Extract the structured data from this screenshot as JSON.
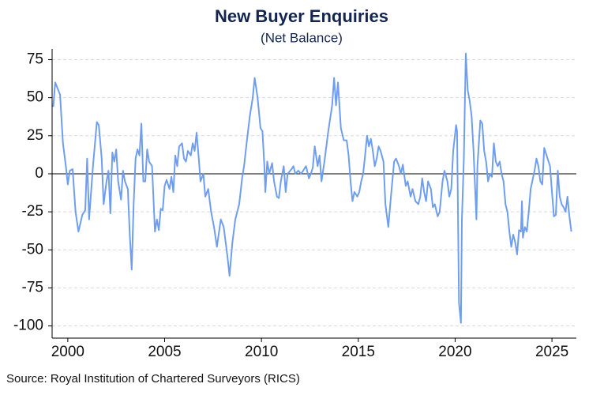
{
  "chart_data": {
    "type": "line",
    "title": "New Buyer Enquiries",
    "subtitle": "(Net Balance)",
    "source": "Source: Royal Institution of Chartered Surveyors (RICS)",
    "color": "#6f9ef0",
    "grid": true,
    "xlim": [
      1999.19,
      2026.26
    ],
    "ylim": [
      -108,
      82
    ],
    "xticks": [
      2000,
      2005,
      2010,
      2015,
      2020,
      2025
    ],
    "yticks": [
      -100,
      -75,
      -50,
      -25,
      0,
      25,
      50,
      75
    ],
    "x": [
      1999.25,
      1999.35,
      1999.6,
      1999.75,
      1999.9,
      2000.0,
      2000.1,
      2000.25,
      2000.4,
      2000.55,
      2000.75,
      2000.9,
      2001.0,
      2001.1,
      2001.3,
      2001.5,
      2001.6,
      2001.75,
      2001.85,
      2002.0,
      2002.1,
      2002.2,
      2002.3,
      2002.4,
      2002.5,
      2002.6,
      2002.75,
      2002.85,
      2002.95,
      2003.1,
      2003.2,
      2003.3,
      2003.4,
      2003.5,
      2003.6,
      2003.7,
      2003.8,
      2003.9,
      2004.0,
      2004.1,
      2004.2,
      2004.35,
      2004.5,
      2004.6,
      2004.7,
      2004.8,
      2004.9,
      2005.0,
      2005.1,
      2005.25,
      2005.35,
      2005.45,
      2005.55,
      2005.65,
      2005.75,
      2005.9,
      2006.0,
      2006.1,
      2006.2,
      2006.35,
      2006.45,
      2006.55,
      2006.65,
      2006.75,
      2006.85,
      2007.0,
      2007.1,
      2007.25,
      2007.4,
      2007.55,
      2007.7,
      2007.9,
      2008.05,
      2008.25,
      2008.35,
      2008.5,
      2008.65,
      2008.85,
      2009.0,
      2009.1,
      2009.25,
      2009.4,
      2009.55,
      2009.65,
      2009.8,
      2009.95,
      2010.05,
      2010.15,
      2010.2,
      2010.3,
      2010.4,
      2010.55,
      2010.65,
      2010.8,
      2010.9,
      2011.0,
      2011.15,
      2011.25,
      2011.35,
      2011.55,
      2011.65,
      2011.75,
      2011.9,
      2012.05,
      2012.15,
      2012.3,
      2012.45,
      2012.55,
      2012.65,
      2012.75,
      2012.9,
      2013.0,
      2013.1,
      2013.25,
      2013.45,
      2013.65,
      2013.75,
      2013.85,
      2013.95,
      2014.1,
      2014.25,
      2014.4,
      2014.5,
      2014.6,
      2014.7,
      2014.8,
      2014.95,
      2015.05,
      2015.15,
      2015.25,
      2015.35,
      2015.45,
      2015.55,
      2015.65,
      2015.75,
      2015.85,
      2015.95,
      2016.05,
      2016.15,
      2016.3,
      2016.4,
      2016.55,
      2016.65,
      2016.85,
      2016.95,
      2017.1,
      2017.2,
      2017.3,
      2017.45,
      2017.55,
      2017.7,
      2017.8,
      2017.95,
      2018.1,
      2018.2,
      2018.3,
      2018.4,
      2018.5,
      2018.6,
      2018.75,
      2018.85,
      2018.95,
      2019.1,
      2019.2,
      2019.35,
      2019.45,
      2019.6,
      2019.7,
      2019.8,
      2019.9,
      2020.05,
      2020.1,
      2020.2,
      2020.3,
      2020.35,
      2020.45,
      2020.55,
      2020.65,
      2020.75,
      2020.85,
      2020.95,
      2021.1,
      2021.15,
      2021.3,
      2021.4,
      2021.5,
      2021.6,
      2021.7,
      2021.8,
      2021.9,
      2022.0,
      2022.1,
      2022.2,
      2022.3,
      2022.4,
      2022.5,
      2022.6,
      2022.7,
      2022.8,
      2022.9,
      2023.0,
      2023.1,
      2023.2,
      2023.3,
      2023.4,
      2023.45,
      2023.5,
      2023.6,
      2023.7,
      2023.8,
      2023.9,
      2024.1,
      2024.2,
      2024.3,
      2024.4,
      2024.5,
      2024.6,
      2024.7,
      2024.8,
      2024.9,
      2025.0,
      2025.1,
      2025.2,
      2025.3,
      2025.4,
      2025.5,
      2025.6,
      2025.7,
      2025.8,
      2025.9,
      2026.0
    ],
    "values": [
      44,
      60,
      52,
      20,
      5,
      -7,
      2,
      3,
      -25,
      -38,
      -27,
      -24,
      10,
      -30,
      5,
      34,
      32,
      10,
      -20,
      -5,
      2,
      -26,
      14,
      8,
      16,
      -5,
      -17,
      2,
      -5,
      -10,
      -40,
      -63,
      -20,
      10,
      16,
      12,
      33,
      -5,
      -5,
      16,
      8,
      5,
      -38,
      -30,
      -37,
      -23,
      -24,
      -8,
      -4,
      -10,
      -2,
      -12,
      12,
      5,
      18,
      20,
      10,
      8,
      15,
      12,
      20,
      15,
      27,
      12,
      -5,
      0,
      -15,
      -10,
      -25,
      -35,
      -48,
      -30,
      -35,
      -55,
      -67,
      -45,
      -30,
      -20,
      -3,
      5,
      22,
      38,
      50,
      63,
      50,
      30,
      28,
      5,
      -12,
      8,
      0,
      7,
      -5,
      -15,
      -16,
      -5,
      5,
      -12,
      0,
      3,
      5,
      0,
      2,
      0,
      2,
      5,
      -3,
      0,
      4,
      18,
      5,
      12,
      -5,
      8,
      28,
      45,
      63,
      45,
      60,
      30,
      22,
      22,
      12,
      -5,
      -18,
      -12,
      -15,
      -12,
      -5,
      0,
      12,
      25,
      18,
      23,
      15,
      5,
      10,
      18,
      15,
      8,
      -20,
      -35,
      -20,
      8,
      10,
      5,
      0,
      6,
      -8,
      -5,
      -15,
      -10,
      -18,
      -20,
      -15,
      -3,
      -12,
      -18,
      -5,
      -10,
      -22,
      -20,
      -28,
      -25,
      -5,
      2,
      -5,
      -15,
      -10,
      15,
      32,
      28,
      -85,
      -98,
      -30,
      10,
      79,
      55,
      48,
      38,
      15,
      -30,
      5,
      35,
      33,
      15,
      8,
      -5,
      0,
      -2,
      20,
      8,
      5,
      8,
      0,
      -5,
      -20,
      -25,
      -38,
      -48,
      -40,
      -45,
      -53,
      -37,
      -38,
      -18,
      -42,
      -35,
      -38,
      -25,
      -10,
      2,
      10,
      5,
      -5,
      -7,
      17,
      13,
      9,
      5,
      -12,
      -28,
      -27,
      2,
      -15,
      -20,
      -22,
      -25,
      -15,
      -28,
      -38
    ]
  }
}
